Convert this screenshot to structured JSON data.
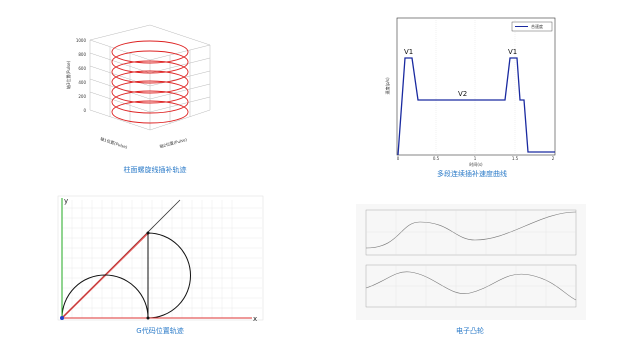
{
  "figures": [
    {
      "caption": "柱面螺旋线插补轨迹",
      "z_ticks": [
        "1000",
        "800",
        "600",
        "400",
        "200",
        "0"
      ],
      "z_label": "轴3位置(Pulse)",
      "x_label": "轴1位置(Pulse)",
      "y_label": "轴2位置(Pulse)"
    },
    {
      "caption": "多段连续插补速度曲线",
      "legend": "合速度",
      "peak_labels": [
        "V1",
        "V1"
      ],
      "plateau_label": "V2",
      "x_ticks": [
        "0",
        "0.5",
        "1",
        "1.5",
        "2"
      ],
      "x_label": "时间(s)",
      "y_label": "速度(p/s)"
    },
    {
      "caption": "G代码位置轨迹",
      "axis_y": "y",
      "axis_x": "x"
    },
    {
      "caption": "电子凸轮"
    }
  ]
}
